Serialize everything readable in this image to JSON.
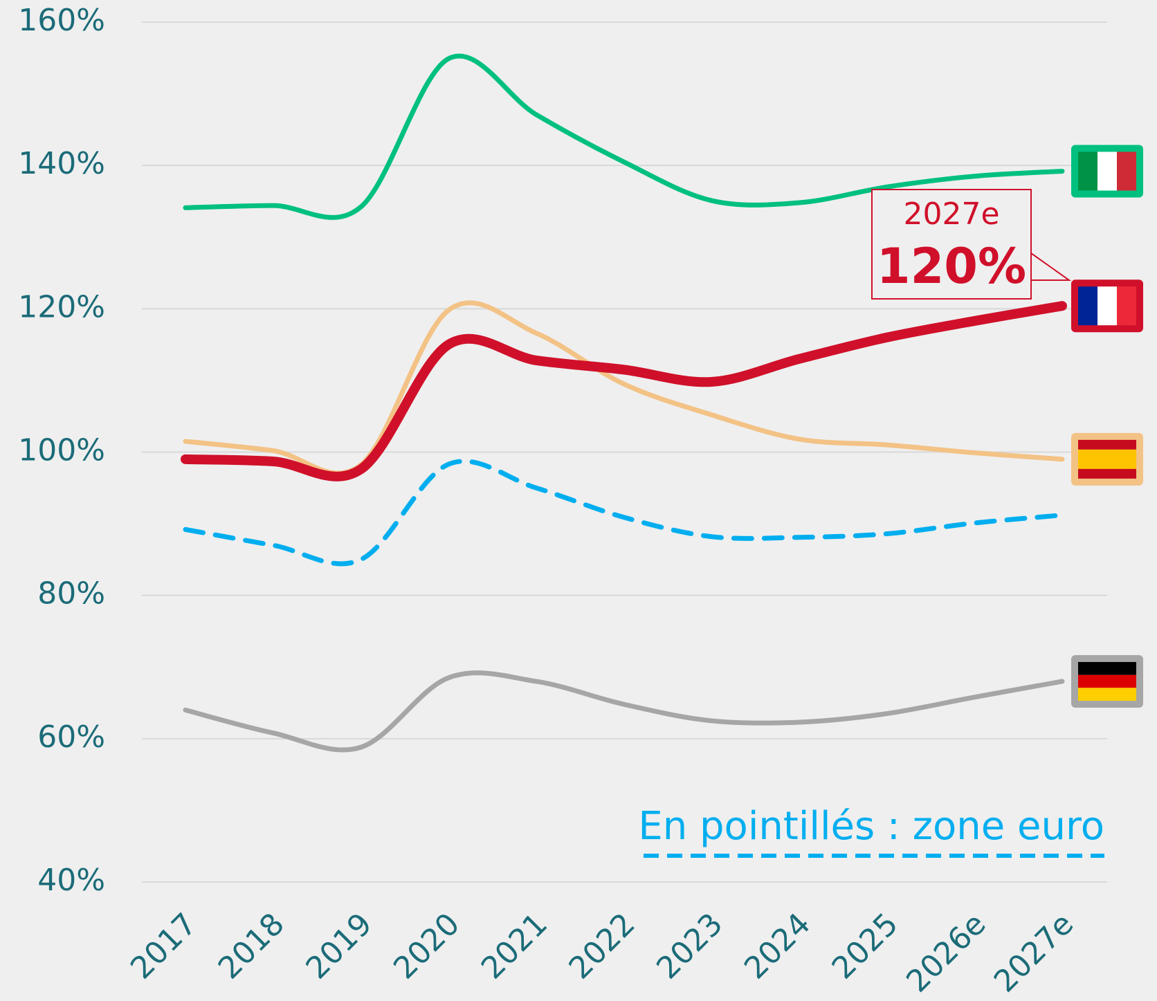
{
  "chart_data": {
    "type": "line",
    "categories": [
      "2017",
      "2018",
      "2019",
      "2020",
      "2021",
      "2022",
      "2023",
      "2024",
      "2025",
      "2026e",
      "2027e"
    ],
    "series": [
      {
        "color": "#00c07f",
        "values": [
          134.1,
          134.4,
          134.2,
          154.9,
          147.1,
          140.5,
          135.1,
          134.8,
          137.0,
          138.5,
          139.2
        ],
        "flag": {
          "stripes": "vertical",
          "colors": [
            "#009246",
            "#ffffff",
            "#ce2b37"
          ]
        }
      },
      {
        "color": "#f3c285",
        "values": [
          101.5,
          100.2,
          98.2,
          119.8,
          116.6,
          109.5,
          105.2,
          101.8,
          101.0,
          99.9,
          99.0
        ],
        "flag": {
          "stripes": "horizontal",
          "colors": [
            "#c60b1e",
            "#ffc400",
            "#ffc400",
            "#c60b1e"
          ]
        }
      },
      {
        "color": "#d0102a",
        "values": [
          99.0,
          98.7,
          97.6,
          115.0,
          112.8,
          111.5,
          109.8,
          113.0,
          116.0,
          118.3,
          120.4
        ],
        "width": 14,
        "flag": {
          "stripes": "vertical",
          "colors": [
            "#002395",
            "#ffffff",
            "#ed2939"
          ]
        }
      },
      {
        "color": "#00aeef",
        "values": [
          89.2,
          87.0,
          85.0,
          98.3,
          95.0,
          90.9,
          88.2,
          88.1,
          88.6,
          90.1,
          91.2
        ],
        "dash": true
      },
      {
        "color": "#a6a6a6",
        "values": [
          64.0,
          60.8,
          58.8,
          68.5,
          68.0,
          64.8,
          62.5,
          62.3,
          63.5,
          65.8,
          68.0
        ],
        "flag": {
          "stripes": "horizontal",
          "colors": [
            "#000000",
            "#dd0000",
            "#ffce00"
          ]
        }
      }
    ],
    "ylim": [
      40,
      160
    ],
    "yticks": [
      {
        "value": 40,
        "label": "40%"
      },
      {
        "value": 60,
        "label": "60%"
      },
      {
        "value": 80,
        "label": "80%"
      },
      {
        "value": 100,
        "label": "100%"
      },
      {
        "value": 120,
        "label": "120%"
      },
      {
        "value": 140,
        "label": "140%"
      },
      {
        "value": 160,
        "label": "160%"
      }
    ],
    "grid": true,
    "note": "En pointillés : zone euro",
    "annotation": {
      "title": "2027e",
      "text": "120%",
      "color": "#d0102a"
    }
  }
}
